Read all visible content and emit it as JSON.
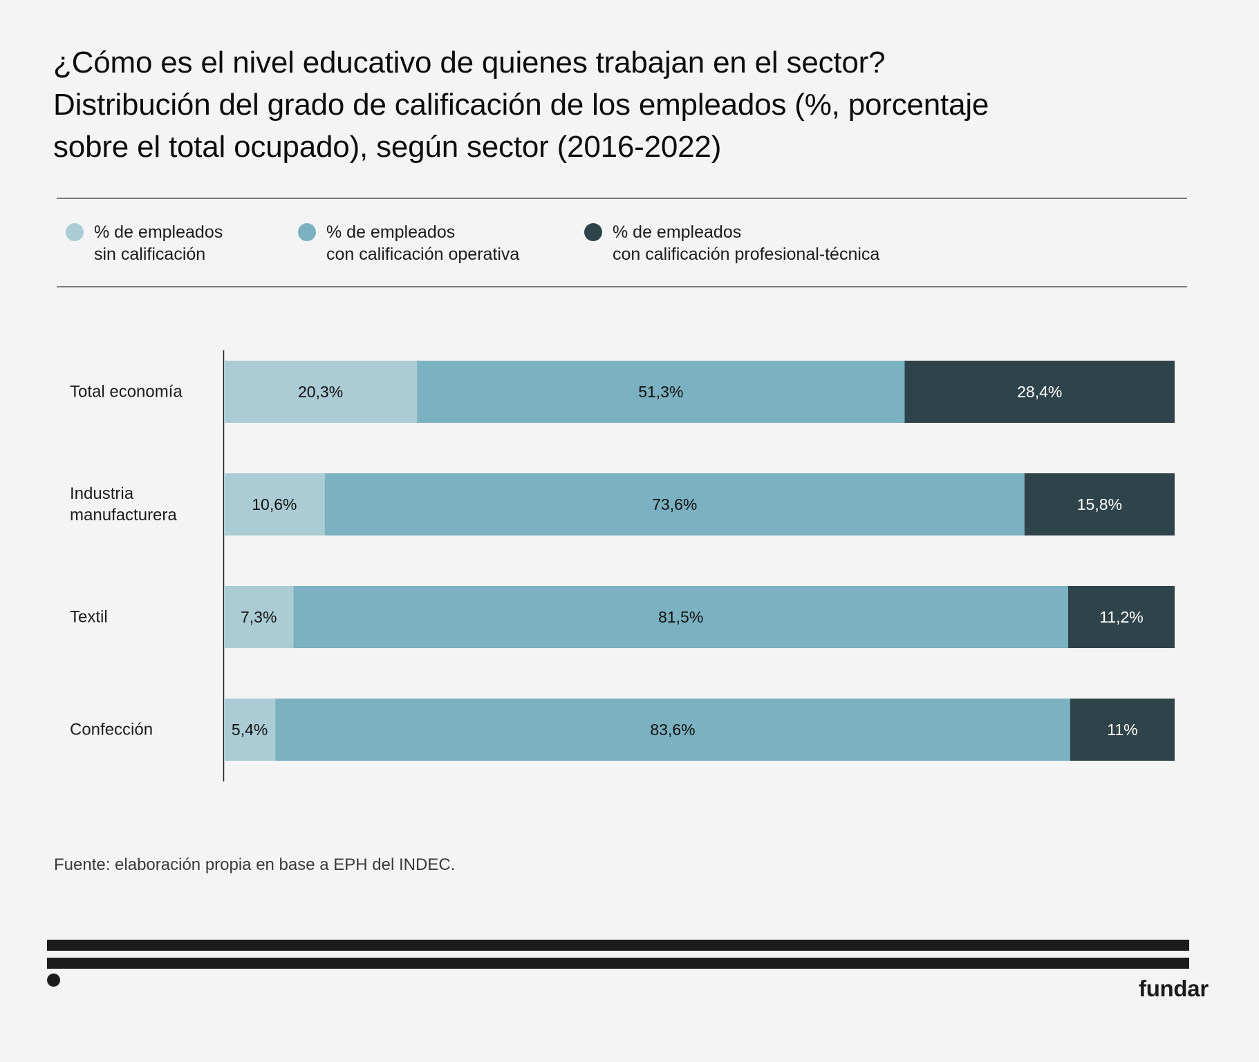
{
  "header": {
    "title_lines": [
      "¿Cómo es el nivel educativo de quienes trabajan en el sector?",
      "Distribución del grado de calificación de los empleados (%, porcentaje",
      "sobre el total ocupado), según sector (2016-2022)"
    ]
  },
  "legend": [
    {
      "lines": [
        "% de empleados",
        "sin calificación"
      ],
      "color": "#abccd4",
      "icon": "circle-swatch-icon"
    },
    {
      "lines": [
        "% de empleados",
        "con calificación operativa"
      ],
      "color": "#7bb1c1",
      "icon": "circle-swatch-icon"
    },
    {
      "lines": [
        "% de empleados",
        "con calificación profesional-técnica"
      ],
      "color": "#2f444a",
      "icon": "circle-swatch-icon"
    }
  ],
  "chart_data": {
    "type": "bar",
    "orientation": "horizontal",
    "stacked": true,
    "title": "¿Cómo es el nivel educativo de quienes trabajan en el sector? Distribución del grado de calificación de los empleados (%, porcentaje sobre el total ocupado), según sector (2016-2022)",
    "xlabel": "",
    "ylabel": "",
    "xlim": [
      0,
      100
    ],
    "grid": false,
    "legend_position": "top",
    "categories": [
      [
        "Total economía"
      ],
      [
        "Industria",
        "manufacturera"
      ],
      [
        "Textil"
      ],
      [
        "Confección"
      ]
    ],
    "series": [
      {
        "name": "% de empleados sin calificación",
        "color": "#abccd4",
        "label_color": "#111111",
        "values": [
          20.3,
          10.6,
          7.3,
          5.4
        ],
        "labels": [
          "20,3%",
          "10,6%",
          "7,3%",
          "5,4%"
        ]
      },
      {
        "name": "% de empleados con calificación operativa",
        "color": "#7bb1c1",
        "label_color": "#111111",
        "values": [
          51.3,
          73.6,
          81.5,
          83.6
        ],
        "labels": [
          "51,3%",
          "73,6%",
          "81,5%",
          "83,6%"
        ]
      },
      {
        "name": "% de empleados con calificación profesional-técnica",
        "color": "#2f444a",
        "label_color": "#ffffff",
        "values": [
          28.4,
          15.8,
          11.2,
          11.0
        ],
        "labels": [
          "28,4%",
          "15,8%",
          "11,2%",
          "11%"
        ]
      }
    ]
  },
  "footer": {
    "source": "Fuente: elaboración propia en base a EPH del INDEC.",
    "brand": "fundar"
  }
}
